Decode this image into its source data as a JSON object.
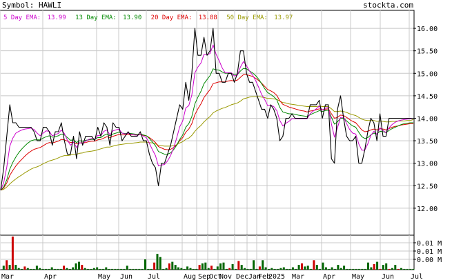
{
  "header": {
    "symbol_label": "Symbol: HAWLI",
    "site": "stockta.com"
  },
  "legend": [
    {
      "label": "5 Day EMA:",
      "value": "13.99",
      "color": "#cc00cc"
    },
    {
      "label": "13 Day EMA:",
      "value": "13.90",
      "color": "#008800"
    },
    {
      "label": "20 Day EMA:",
      "value": "13.88",
      "color": "#dd0000"
    },
    {
      "label": "50 Day EMA:",
      "value": "13.97",
      "color": "#999900"
    }
  ],
  "colors": {
    "price": "#000000",
    "grid": "#c8c8c8",
    "volume": "#006600",
    "volume_down": "#cc0000"
  },
  "chart_data": [
    {
      "type": "line",
      "title": "",
      "ylim": [
        11.4,
        16.4
      ],
      "y_ticks": [
        "12.00",
        "12.50",
        "13.00",
        "13.50",
        "14.00",
        "14.50",
        "15.00",
        "15.50",
        "16.00"
      ],
      "x_ticks": [
        "Mar",
        "Apr",
        "May",
        "Jun",
        "Jul",
        "Aug",
        "Sep",
        "Oct",
        "Nov",
        "Dec",
        "Jan",
        "Feb",
        "2025",
        "Mar",
        "Apr",
        "May",
        "Jun",
        "Jul"
      ],
      "grid": true,
      "series": [
        {
          "key": "close",
          "values": [
            12.4,
            12.9,
            13.6,
            14.3,
            13.9,
            13.9,
            13.8,
            13.8,
            13.8,
            13.8,
            13.8,
            13.7,
            13.5,
            13.5,
            13.8,
            13.8,
            13.7,
            13.4,
            13.7,
            13.7,
            13.9,
            13.5,
            13.2,
            13.2,
            13.6,
            13.1,
            13.7,
            13.4,
            13.6,
            13.6,
            13.6,
            13.5,
            13.8,
            13.6,
            13.9,
            13.8,
            13.4,
            13.9,
            13.8,
            13.8,
            13.5,
            13.6,
            13.7,
            13.6,
            13.6,
            13.6,
            13.7,
            13.5,
            13.5,
            13.2,
            13.0,
            12.9,
            12.5,
            13.0,
            13.0,
            13.2,
            13.4,
            13.7,
            14.0,
            14.3,
            14.2,
            14.8,
            14.4,
            15.0,
            16.0,
            15.4,
            15.4,
            15.8,
            15.4,
            15.5,
            16.0,
            15.0,
            15.0,
            14.8,
            14.8,
            15.0,
            15.0,
            14.8,
            15.0,
            15.5,
            15.5,
            15.0,
            14.8,
            14.8,
            14.6,
            14.4,
            14.2,
            14.2,
            14.0,
            14.3,
            14.2,
            14.0,
            13.5,
            13.6,
            14.0,
            14.0,
            14.1,
            14.0,
            14.0,
            14.0,
            14.0,
            14.0,
            14.3,
            14.3,
            14.3,
            14.4,
            14.0,
            14.3,
            14.3,
            13.1,
            13.0,
            14.2,
            14.5,
            14.0,
            13.6,
            13.5,
            13.5,
            13.6,
            13.0,
            13.0,
            13.3,
            13.7,
            14.0,
            13.9,
            13.5,
            14.1,
            13.6,
            13.6,
            14.0,
            14.0,
            14.0,
            14.0,
            14.0,
            14.0,
            14.0,
            14.0,
            13.99
          ]
        },
        {
          "key": "ema5",
          "values": [
            12.4,
            12.57,
            12.91,
            13.38,
            13.56,
            13.67,
            13.71,
            13.74,
            13.76,
            13.77,
            13.78,
            13.75,
            13.67,
            13.61,
            13.67,
            13.72,
            13.71,
            13.61,
            13.64,
            13.66,
            13.74,
            13.66,
            13.51,
            13.4,
            13.47,
            13.35,
            13.46,
            13.44,
            13.49,
            13.53,
            13.55,
            13.53,
            13.62,
            13.61,
            13.71,
            13.74,
            13.63,
            13.72,
            13.74,
            13.76,
            13.67,
            13.65,
            13.67,
            13.64,
            13.63,
            13.62,
            13.65,
            13.6,
            13.57,
            13.44,
            13.3,
            13.17,
            12.94,
            12.96,
            12.97,
            13.05,
            13.17,
            13.34,
            13.56,
            13.81,
            13.94,
            14.23,
            14.28,
            14.52,
            15.01,
            15.14,
            15.23,
            15.42,
            15.41,
            15.44,
            15.63,
            15.42,
            15.28,
            15.12,
            15.01,
            15.01,
            15.01,
            14.94,
            14.96,
            15.14,
            15.26,
            15.17,
            15.05,
            14.96,
            14.84,
            14.69,
            14.53,
            14.42,
            14.28,
            14.29,
            14.26,
            14.17,
            13.95,
            13.83,
            13.89,
            13.93,
            13.99,
            13.99,
            13.99,
            13.99,
            13.99,
            13.99,
            14.1,
            14.16,
            14.21,
            14.27,
            14.18,
            14.22,
            14.25,
            13.87,
            13.58,
            13.79,
            14.02,
            14.02,
            13.88,
            13.75,
            13.67,
            13.65,
            13.43,
            13.29,
            13.29,
            13.43,
            13.62,
            13.71,
            13.64,
            13.79,
            13.73,
            13.68,
            13.79,
            13.86,
            13.91,
            13.94,
            13.96,
            13.97,
            13.98,
            13.99,
            13.99
          ]
        },
        {
          "key": "ema13",
          "values": [
            12.4,
            12.47,
            12.63,
            12.87,
            13.02,
            13.14,
            13.24,
            13.32,
            13.39,
            13.45,
            13.5,
            13.52,
            13.52,
            13.52,
            13.56,
            13.59,
            13.61,
            13.58,
            13.59,
            13.61,
            13.65,
            13.63,
            13.57,
            13.51,
            13.52,
            13.46,
            13.5,
            13.49,
            13.51,
            13.52,
            13.53,
            13.53,
            13.57,
            13.57,
            13.62,
            13.65,
            13.61,
            13.65,
            13.67,
            13.69,
            13.67,
            13.66,
            13.67,
            13.66,
            13.65,
            13.64,
            13.65,
            13.63,
            13.61,
            13.55,
            13.47,
            13.39,
            13.26,
            13.23,
            13.2,
            13.2,
            13.23,
            13.3,
            13.4,
            13.53,
            13.63,
            13.8,
            13.88,
            14.04,
            14.32,
            14.47,
            14.6,
            14.77,
            14.86,
            14.95,
            15.1,
            15.08,
            15.07,
            15.03,
            15.0,
            15.0,
            15.0,
            14.97,
            14.97,
            15.05,
            15.11,
            15.1,
            15.05,
            15.01,
            14.95,
            14.87,
            14.77,
            14.66,
            14.57,
            14.53,
            14.48,
            14.41,
            14.24,
            14.14,
            14.12,
            14.1,
            14.1,
            14.09,
            14.07,
            14.06,
            14.05,
            14.04,
            14.08,
            14.11,
            14.14,
            14.17,
            14.15,
            14.17,
            14.18,
            14.02,
            13.87,
            13.92,
            14.0,
            14.0,
            13.94,
            13.88,
            13.83,
            13.8,
            13.69,
            13.59,
            13.55,
            13.57,
            13.63,
            13.67,
            13.65,
            13.71,
            13.7,
            13.68,
            13.73,
            13.77,
            13.8,
            13.83,
            13.86,
            13.88,
            13.89,
            13.9,
            13.9
          ]
        },
        {
          "key": "ema20",
          "values": [
            12.4,
            12.45,
            12.56,
            12.73,
            12.84,
            12.94,
            13.02,
            13.09,
            13.16,
            13.22,
            13.27,
            13.31,
            13.33,
            13.35,
            13.39,
            13.43,
            13.46,
            13.45,
            13.47,
            13.49,
            13.53,
            13.52,
            13.49,
            13.46,
            13.47,
            13.43,
            13.45,
            13.45,
            13.46,
            13.48,
            13.49,
            13.49,
            13.52,
            13.53,
            13.56,
            13.59,
            13.57,
            13.6,
            13.62,
            13.64,
            13.63,
            13.63,
            13.64,
            13.63,
            13.63,
            13.63,
            13.64,
            13.62,
            13.61,
            13.57,
            13.52,
            13.46,
            13.37,
            13.34,
            13.31,
            13.3,
            13.31,
            13.35,
            13.41,
            13.5,
            13.57,
            13.69,
            13.76,
            13.88,
            14.08,
            14.21,
            14.32,
            14.46,
            14.55,
            14.64,
            14.77,
            14.79,
            14.81,
            14.81,
            14.81,
            14.83,
            14.84,
            14.83,
            14.85,
            14.91,
            14.97,
            14.97,
            14.95,
            14.93,
            14.89,
            14.84,
            14.78,
            14.71,
            14.64,
            14.61,
            14.57,
            14.51,
            14.39,
            14.31,
            14.28,
            14.25,
            14.23,
            14.21,
            14.19,
            14.17,
            14.16,
            14.14,
            14.16,
            14.17,
            14.19,
            14.21,
            14.19,
            14.2,
            14.21,
            14.1,
            14.0,
            14.02,
            14.07,
            14.06,
            14.02,
            13.97,
            13.93,
            13.9,
            13.82,
            13.74,
            13.7,
            13.71,
            13.74,
            13.76,
            13.74,
            13.77,
            13.76,
            13.74,
            13.77,
            13.8,
            13.82,
            13.83,
            13.85,
            13.86,
            13.87,
            13.88,
            13.88
          ]
        },
        {
          "key": "ema50",
          "values": [
            12.4,
            12.42,
            12.47,
            12.54,
            12.6,
            12.65,
            12.7,
            12.74,
            12.79,
            12.83,
            12.87,
            12.9,
            12.92,
            12.95,
            12.99,
            13.02,
            13.05,
            13.07,
            13.09,
            13.12,
            13.15,
            13.17,
            13.17,
            13.18,
            13.2,
            13.2,
            13.22,
            13.23,
            13.25,
            13.26,
            13.27,
            13.28,
            13.3,
            13.32,
            13.34,
            13.36,
            13.36,
            13.38,
            13.4,
            13.41,
            13.42,
            13.43,
            13.44,
            13.44,
            13.45,
            13.46,
            13.47,
            13.47,
            13.47,
            13.46,
            13.45,
            13.43,
            13.4,
            13.39,
            13.38,
            13.38,
            13.38,
            13.39,
            13.41,
            13.45,
            13.48,
            13.53,
            13.56,
            13.62,
            13.71,
            13.78,
            13.84,
            13.92,
            13.98,
            14.04,
            14.12,
            14.16,
            14.19,
            14.22,
            14.24,
            14.27,
            14.3,
            14.32,
            14.34,
            14.38,
            14.43,
            14.45,
            14.47,
            14.48,
            14.48,
            14.48,
            14.47,
            14.46,
            14.44,
            14.44,
            14.43,
            14.42,
            14.38,
            14.35,
            14.34,
            14.32,
            14.31,
            14.3,
            14.29,
            14.28,
            14.27,
            14.26,
            14.26,
            14.26,
            14.26,
            14.27,
            14.26,
            14.26,
            14.26,
            14.21,
            14.15,
            14.15,
            14.16,
            14.15,
            14.13,
            14.1,
            14.08,
            14.06,
            14.02,
            13.98,
            13.96,
            13.95,
            13.95,
            13.95,
            13.93,
            13.94,
            13.93,
            13.92,
            13.92,
            13.93,
            13.93,
            13.94,
            13.94,
            13.94,
            13.95,
            13.95,
            13.97
          ]
        }
      ]
    },
    {
      "type": "bar",
      "title": "",
      "y_ticks": [
        "0.01 M",
        "0.01 M",
        "0.00 M"
      ],
      "values": [
        0,
        500,
        1200,
        600,
        4200,
        600,
        200,
        100,
        400,
        200,
        100,
        100,
        500,
        200,
        100,
        100,
        100,
        300,
        100,
        100,
        100,
        500,
        200,
        100,
        300,
        800,
        1000,
        600,
        200,
        100,
        100,
        200,
        300,
        100,
        100,
        300,
        100,
        100,
        100,
        100,
        100,
        100,
        500,
        100,
        100,
        100,
        100,
        100,
        1300,
        100,
        100,
        900,
        2000,
        1600,
        100,
        200,
        800,
        1000,
        600,
        300,
        200,
        100,
        400,
        200,
        100,
        100,
        600,
        800,
        900,
        200,
        500,
        100,
        400,
        800,
        900,
        100,
        200,
        700,
        100,
        1100,
        600,
        200,
        100,
        100,
        1200,
        100,
        400,
        1200,
        300,
        100,
        200,
        100,
        100,
        200,
        300,
        100,
        100,
        300,
        100,
        600,
        800,
        400,
        500,
        100,
        1200,
        600,
        100,
        900,
        300,
        100,
        300,
        100,
        600,
        200,
        500,
        100,
        100,
        100,
        100,
        100,
        100,
        100,
        900,
        300,
        700,
        1000,
        100,
        600,
        800,
        100,
        200,
        600,
        100,
        200,
        100,
        100,
        100,
        100
      ],
      "down": [
        0,
        0,
        1,
        0,
        1,
        0,
        0,
        0,
        1,
        0,
        0,
        0,
        0,
        0,
        0,
        0,
        0,
        0,
        0,
        0,
        0,
        1,
        0,
        0,
        0,
        0,
        0,
        1,
        0,
        0,
        0,
        0,
        0,
        0,
        0,
        0,
        0,
        0,
        0,
        0,
        0,
        0,
        0,
        0,
        0,
        0,
        0,
        0,
        0,
        0,
        0,
        1,
        0,
        0,
        0,
        0,
        1,
        0,
        0,
        0,
        0,
        0,
        0,
        0,
        0,
        0,
        1,
        0,
        0,
        0,
        1,
        0,
        0,
        0,
        0,
        0,
        1,
        0,
        0,
        1,
        0,
        0,
        0,
        0,
        0,
        0,
        1,
        0,
        0,
        0,
        0,
        0,
        0,
        0,
        0,
        0,
        0,
        0,
        0,
        0,
        1,
        0,
        0,
        0,
        1,
        0,
        0,
        0,
        0,
        0,
        0,
        0,
        0,
        0,
        0,
        0,
        0,
        0,
        0,
        0,
        0,
        0,
        0,
        0,
        1,
        0,
        1,
        0,
        0,
        1,
        0,
        0,
        1,
        0,
        0,
        0,
        0,
        0,
        0,
        0
      ]
    }
  ]
}
